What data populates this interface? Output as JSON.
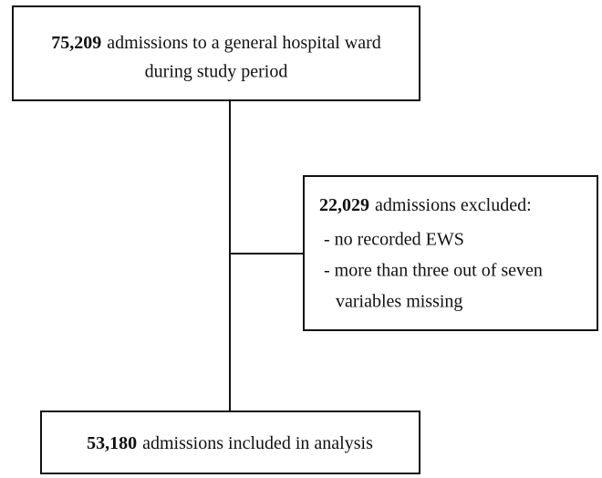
{
  "nodes": [
    {
      "count": "75,209",
      "lines": [
        "admissions to a general hospital ward",
        "during study period"
      ]
    },
    {
      "count": "22,029",
      "lines": [
        "admissions excluded:",
        "- no recorded EWS",
        "- more than three out of seven",
        "variables missing"
      ]
    },
    {
      "count": "53,180",
      "lines": [
        "admissions included in analysis"
      ]
    }
  ]
}
